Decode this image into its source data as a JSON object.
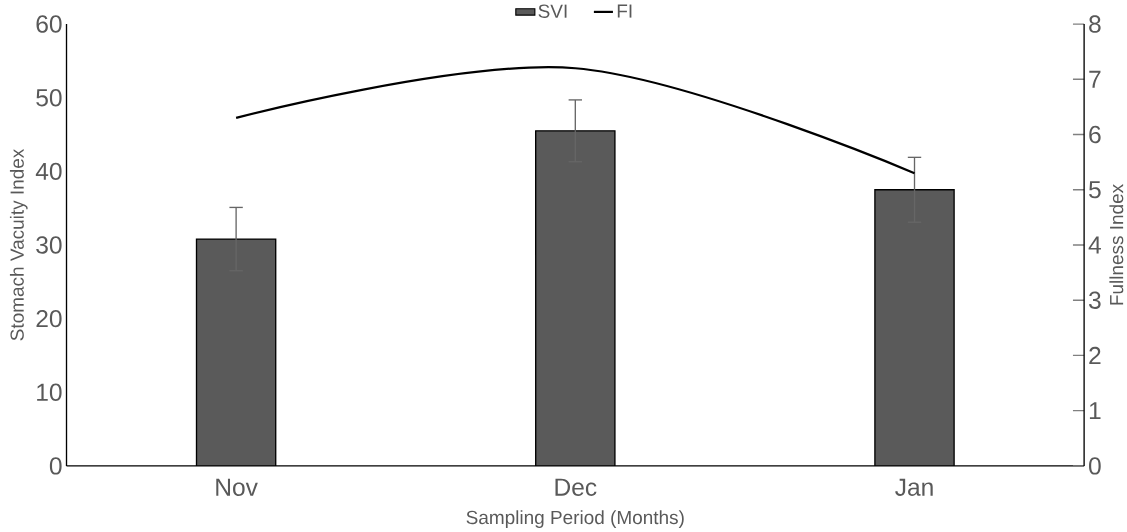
{
  "chart_data": {
    "type": "bar",
    "xlabel": "Sampling Period (Months)",
    "ylabel": "Stomach Vacuity Index",
    "y2label": "Fullness Index",
    "categories": [
      "Nov",
      "Dec",
      "Jan"
    ],
    "series": [
      {
        "name": "SVI",
        "color": "#5a5a5a",
        "values": [
          30.8,
          45.5,
          37.5
        ],
        "errors": [
          4.3,
          4.2,
          4.4
        ]
      },
      {
        "name": "FI",
        "type": "line",
        "axis": "y2",
        "color": "#000000",
        "values": [
          6.3,
          7.2,
          5.3
        ]
      }
    ],
    "ylim": [
      0,
      60
    ],
    "yticks": [
      0,
      10,
      20,
      30,
      40,
      50,
      60
    ],
    "y2lim": [
      0,
      8
    ],
    "y2ticks": [
      0,
      1,
      2,
      3,
      4,
      5,
      6,
      7,
      8
    ],
    "legend": "top",
    "marker": "none",
    "line_style": "solid"
  }
}
